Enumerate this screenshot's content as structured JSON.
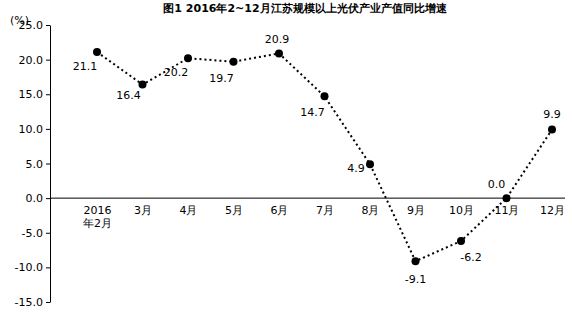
{
  "chart_data": {
    "type": "line",
    "title": "图1 2016年2~12月江苏规模以上光伏产业产值同比增速",
    "y_label": "(%)",
    "categories": [
      "2016年2月",
      "3月",
      "4月",
      "5月",
      "6月",
      "7月",
      "8月",
      "9月",
      "10月",
      "11月",
      "12月"
    ],
    "values": [
      21.1,
      16.4,
      20.2,
      19.7,
      20.9,
      14.7,
      4.9,
      -9.1,
      -6.2,
      0.0,
      9.9
    ],
    "value_labels": [
      "21.1",
      "16.4",
      "20.2",
      "19.7",
      "20.9",
      "14.7",
      "4.9",
      "-9.1",
      "-6.2",
      "0.0",
      "9.9"
    ],
    "color": "#000000",
    "marker": "circle",
    "line_style": "dotted",
    "data_labels": true,
    "grid": false,
    "ylim": [
      -15,
      25
    ],
    "yticks": [
      {
        "value": -15,
        "label": "-15.0"
      },
      {
        "value": -10,
        "label": "-10.0"
      },
      {
        "value": -5,
        "label": "-5.0"
      },
      {
        "value": 0,
        "label": "0.0"
      },
      {
        "value": 5,
        "label": "5.0"
      },
      {
        "value": 10,
        "label": "10.0"
      },
      {
        "value": 15,
        "label": "15.0"
      },
      {
        "value": 20,
        "label": "20.0"
      },
      {
        "value": 25,
        "label": "25.0"
      }
    ]
  }
}
